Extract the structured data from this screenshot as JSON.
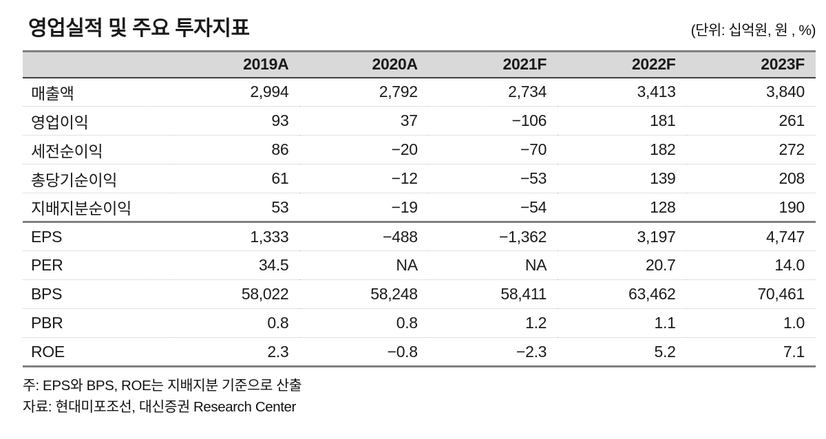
{
  "title": "영업실적 및 주요 투자지표",
  "unit_note": "(단위: 십억원, 원 , %)",
  "table": {
    "header": [
      "2019A",
      "2020A",
      "2021F",
      "2022F",
      "2023F"
    ],
    "financial_rows": [
      {
        "label": "매출액",
        "values": [
          "2,994",
          "2,792",
          "2,734",
          "3,413",
          "3,840"
        ]
      },
      {
        "label": "영업이익",
        "values": [
          "93",
          "37",
          "−106",
          "181",
          "261"
        ]
      },
      {
        "label": "세전순이익",
        "values": [
          "86",
          "−20",
          "−70",
          "182",
          "272"
        ]
      },
      {
        "label": "총당기순이익",
        "values": [
          "61",
          "−12",
          "−53",
          "139",
          "208"
        ]
      },
      {
        "label": "지배지분순이익",
        "values": [
          "53",
          "−19",
          "−54",
          "128",
          "190"
        ]
      }
    ],
    "valuation_rows": [
      {
        "label": "EPS",
        "values": [
          "1,333",
          "−488",
          "−1,362",
          "3,197",
          "4,747"
        ]
      },
      {
        "label": "PER",
        "values": [
          "34.5",
          "NA",
          "NA",
          "20.7",
          "14.0"
        ]
      },
      {
        "label": "BPS",
        "values": [
          "58,022",
          "58,248",
          "58,411",
          "63,462",
          "70,461"
        ]
      },
      {
        "label": "PBR",
        "values": [
          "0.8",
          "0.8",
          "1.2",
          "1.1",
          "1.0"
        ]
      },
      {
        "label": "ROE",
        "values": [
          "2.3",
          "−0.8",
          "−2.3",
          "5.2",
          "7.1"
        ]
      }
    ]
  },
  "notes": {
    "note": "주: EPS와 BPS, ROE는 지배지분 기준으로 산출",
    "source": "자료: 현대미포조선, 대신증권 Research Center"
  },
  "colors": {
    "header_bg": "#d9d9d9",
    "rule_gray": "#808080",
    "header_rule_dark": "#404040",
    "text": "#1a1a1a"
  }
}
